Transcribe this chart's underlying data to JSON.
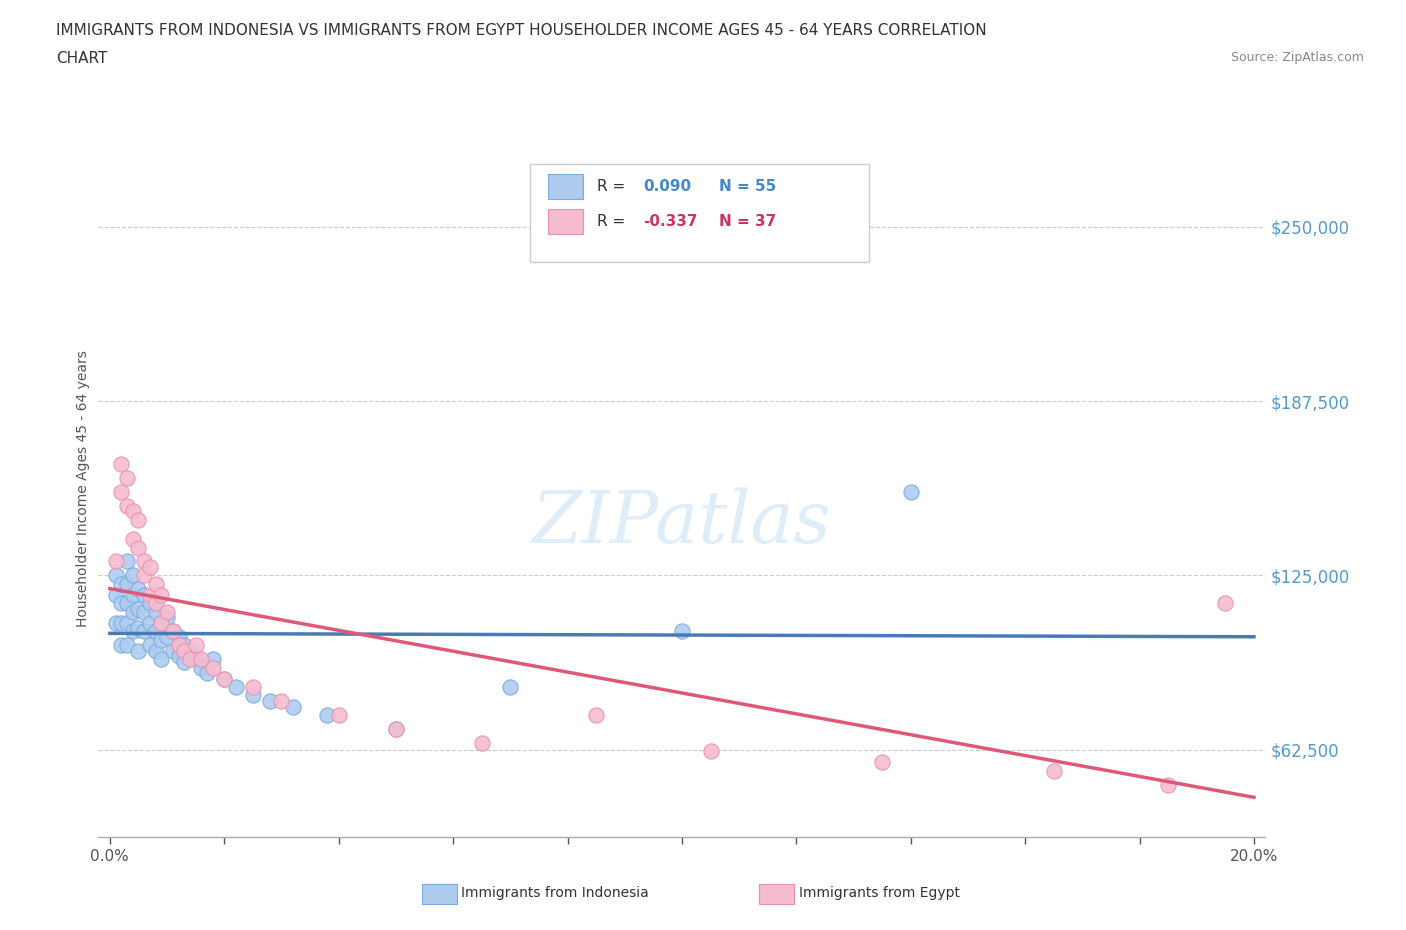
{
  "title_line1": "IMMIGRANTS FROM INDONESIA VS IMMIGRANTS FROM EGYPT HOUSEHOLDER INCOME AGES 45 - 64 YEARS CORRELATION",
  "title_line2": "CHART",
  "source": "Source: ZipAtlas.com",
  "ylabel": "Householder Income Ages 45 - 64 years",
  "xlim": [
    -0.002,
    0.202
  ],
  "ylim": [
    31250,
    281250
  ],
  "yticks": [
    62500,
    125000,
    187500,
    250000
  ],
  "xticks": [
    0.0,
    0.02,
    0.04,
    0.06,
    0.08,
    0.1,
    0.12,
    0.14,
    0.16,
    0.18,
    0.2
  ],
  "xtick_labels_show": [
    "0.0%",
    "",
    "",
    "",
    "",
    "",
    "",
    "",
    "",
    "",
    "20.0%"
  ],
  "indonesia_color": "#aeccf0",
  "indonesia_edge": "#7aacd8",
  "egypt_color": "#f5bcd0",
  "egypt_edge": "#e890b0",
  "indonesia_line_color": "#4a7ab5",
  "egypt_line_color": "#e05878",
  "grid_color": "#cccccc",
  "background_color": "#ffffff",
  "legend_r_indonesia": "0.090",
  "legend_n_indonesia": "55",
  "legend_r_egypt": "-0.337",
  "legend_n_egypt": "37",
  "watermark_text": "ZIPatlas",
  "indonesia_x": [
    0.001,
    0.001,
    0.001,
    0.002,
    0.002,
    0.002,
    0.002,
    0.003,
    0.003,
    0.003,
    0.003,
    0.003,
    0.004,
    0.004,
    0.004,
    0.004,
    0.005,
    0.005,
    0.005,
    0.005,
    0.006,
    0.006,
    0.006,
    0.007,
    0.007,
    0.007,
    0.008,
    0.008,
    0.008,
    0.009,
    0.009,
    0.009,
    0.01,
    0.01,
    0.011,
    0.011,
    0.012,
    0.012,
    0.013,
    0.013,
    0.014,
    0.015,
    0.016,
    0.017,
    0.018,
    0.02,
    0.022,
    0.025,
    0.028,
    0.032,
    0.038,
    0.05,
    0.07,
    0.1,
    0.14
  ],
  "indonesia_y": [
    125000,
    118000,
    108000,
    122000,
    115000,
    108000,
    100000,
    130000,
    122000,
    115000,
    108000,
    100000,
    125000,
    118000,
    112000,
    105000,
    120000,
    113000,
    106000,
    98000,
    118000,
    112000,
    105000,
    115000,
    108000,
    100000,
    112000,
    105000,
    98000,
    108000,
    102000,
    95000,
    110000,
    103000,
    105000,
    98000,
    103000,
    96000,
    100000,
    94000,
    98000,
    95000,
    92000,
    90000,
    95000,
    88000,
    85000,
    82000,
    80000,
    78000,
    75000,
    70000,
    85000,
    105000,
    155000
  ],
  "egypt_x": [
    0.001,
    0.002,
    0.002,
    0.003,
    0.003,
    0.004,
    0.004,
    0.005,
    0.005,
    0.006,
    0.006,
    0.007,
    0.007,
    0.008,
    0.008,
    0.009,
    0.009,
    0.01,
    0.011,
    0.012,
    0.013,
    0.014,
    0.015,
    0.016,
    0.018,
    0.02,
    0.025,
    0.03,
    0.04,
    0.05,
    0.065,
    0.085,
    0.105,
    0.135,
    0.165,
    0.185,
    0.195
  ],
  "egypt_y": [
    130000,
    165000,
    155000,
    160000,
    150000,
    148000,
    138000,
    145000,
    135000,
    130000,
    125000,
    128000,
    118000,
    122000,
    115000,
    118000,
    108000,
    112000,
    105000,
    100000,
    98000,
    95000,
    100000,
    95000,
    92000,
    88000,
    85000,
    80000,
    75000,
    70000,
    65000,
    75000,
    62000,
    58000,
    55000,
    50000,
    115000
  ]
}
